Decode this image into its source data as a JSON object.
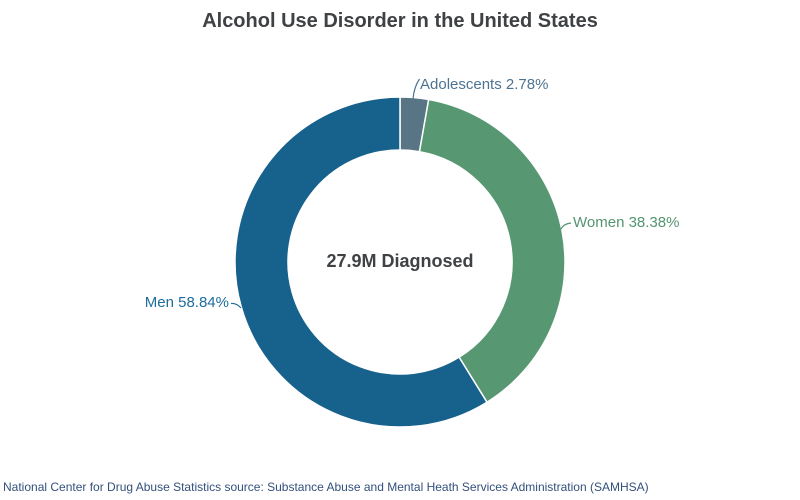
{
  "title": "Alcohol Use Disorder in the United States",
  "chart_data": {
    "type": "pie",
    "variant": "donut",
    "title": "Alcohol Use Disorder in the United States",
    "center_label": "27.9M Diagnosed",
    "units": "percent",
    "start_angle_deg": 0,
    "direction": "clockwise",
    "segments": [
      {
        "name": "Adolescents",
        "value": 2.78,
        "label": "Adolescents 2.78%",
        "color": "#587586",
        "label_color": "#4e7391"
      },
      {
        "name": "Women",
        "value": 38.38,
        "label": "Women 38.38%",
        "color": "#579873",
        "label_color": "#549470"
      },
      {
        "name": "Men",
        "value": 58.84,
        "label": "Men 58.84%",
        "color": "#17618d",
        "label_color": "#1d6c9c"
      }
    ]
  },
  "colors": {
    "background": "#ffffff",
    "title_text": "#3f4245",
    "center_text": "#3f4245",
    "footer_text": "#33507c",
    "segment_gap": "#ffffff"
  },
  "footer": {
    "source_text": "National Center for Drug Abuse Statistics source: Substance Abuse and Mental Heath Services Administration (SAMHSA)"
  }
}
